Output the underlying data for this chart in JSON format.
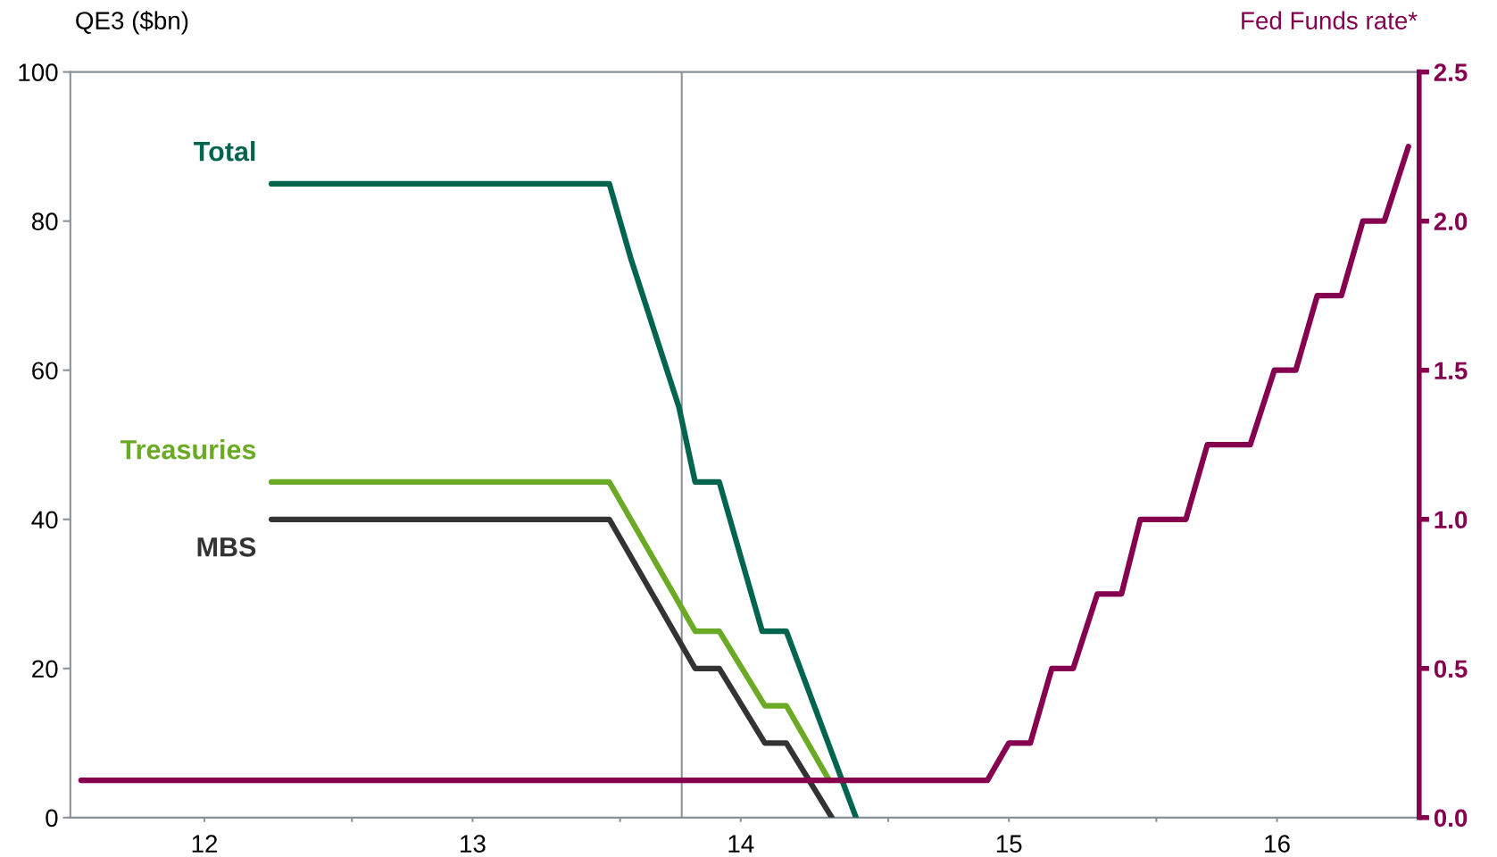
{
  "chart_data": {
    "type": "line",
    "ylabel": "QE3 ($bn)",
    "y2label": "Fed Funds rate*",
    "xlim": [
      11.5,
      16.53
    ],
    "xticks": [
      {
        "value": 12.55,
        "label": null
      },
      {
        "value": 13.55,
        "label": null
      },
      {
        "value": 14.55,
        "label": null
      },
      {
        "value": 15.55,
        "label": null
      },
      12,
      13,
      14,
      15,
      16
    ],
    "ylim": [
      0,
      100
    ],
    "yticks": [
      0,
      20,
      40,
      60,
      80,
      100
    ],
    "y2lim": [
      0,
      2.5
    ],
    "y2ticks": [
      {
        "value": 0,
        "label": "0.0"
      },
      0.5,
      {
        "value": 1,
        "label": "1.0"
      },
      1.5,
      {
        "value": 2,
        "label": "2.0"
      },
      2.5
    ],
    "ref_lines": [
      {
        "axis": "x",
        "value": 13.78,
        "color": "#8a9199"
      }
    ],
    "grid": false,
    "legend": false,
    "marker": "none",
    "line_style": "solid",
    "series": [
      {
        "name": "Total",
        "color": "#00644f",
        "x": [
          12.25,
          13.51,
          13.59,
          13.68,
          13.77,
          13.83,
          13.92,
          14.08,
          14.17,
          14.43
        ],
        "values": [
          85,
          85,
          75,
          65,
          55,
          45,
          45,
          25,
          25,
          0
        ]
      },
      {
        "name": "Treasuries",
        "color": "#6aaa24",
        "x": [
          12.25,
          13.51,
          13.59,
          13.67,
          13.83,
          13.92,
          14.09,
          14.17,
          14.33
        ],
        "values": [
          45,
          45,
          40,
          35,
          25,
          25,
          15,
          15,
          5
        ]
      },
      {
        "name": "MBS",
        "color": "#333333",
        "x": [
          12.25,
          13.51,
          13.59,
          13.67,
          13.83,
          13.92,
          14.09,
          14.17,
          14.34
        ],
        "values": [
          40,
          40,
          35,
          30,
          20,
          20,
          10,
          10,
          0
        ]
      },
      {
        "color": "#860050",
        "axis": "y2",
        "x": [
          11.54,
          14.92,
          15.0,
          15.08,
          15.16,
          15.24,
          15.33,
          15.42,
          15.49,
          15.66,
          15.74,
          15.9,
          15.99,
          16.07,
          16.15,
          16.24,
          16.32,
          16.4,
          16.49
        ],
        "values": [
          0.125,
          0.125,
          0.25,
          0.25,
          0.5,
          0.5,
          0.75,
          0.75,
          1.0,
          1.0,
          1.25,
          1.25,
          1.5,
          1.5,
          1.75,
          1.75,
          2.0,
          2.0,
          2.25
        ]
      }
    ]
  }
}
